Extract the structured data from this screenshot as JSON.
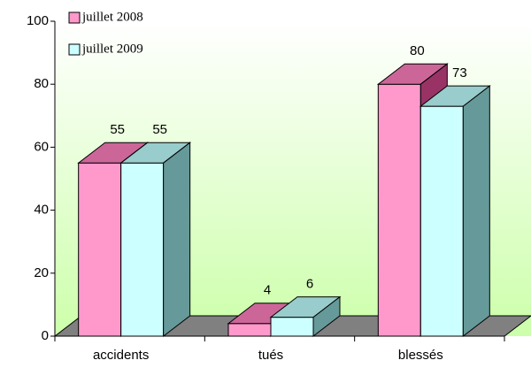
{
  "chart_data": {
    "type": "bar3d",
    "categories": [
      "accidents",
      "tués",
      "blessés"
    ],
    "series": [
      {
        "name": "juillet 2008",
        "color": "#ff99cc",
        "top_color": "#cc6699",
        "side_color": "#993366",
        "values": [
          55,
          4,
          80
        ]
      },
      {
        "name": "juillet 2009",
        "color": "#ccffff",
        "top_color": "#99cccc",
        "side_color": "#669999",
        "values": [
          55,
          6,
          73
        ]
      }
    ],
    "ylim": [
      0,
      100
    ],
    "yticks": [
      0,
      20,
      40,
      60,
      80,
      100
    ],
    "legend": "top-left"
  }
}
